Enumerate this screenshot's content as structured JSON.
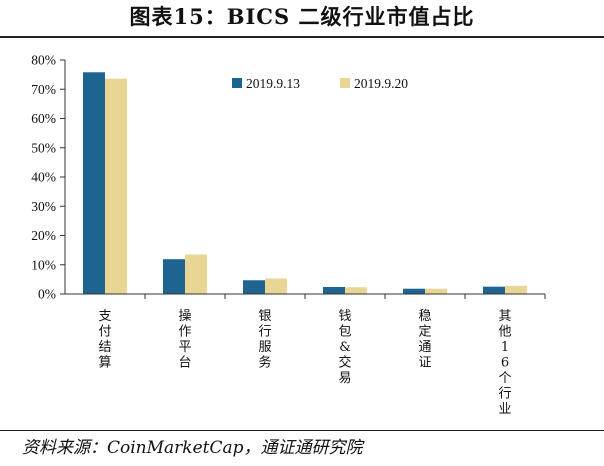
{
  "figure": {
    "title": "图表15：BICS 二级行业市值占比",
    "source": "资料来源：CoinMarketCap，通证通研究院"
  },
  "chart_data": {
    "type": "bar",
    "categories": [
      "支付结算",
      "操作平台",
      "银行服务",
      "钱包&交易",
      "稳定通证",
      "其他16个行业"
    ],
    "series": [
      {
        "name": "2019.9.13",
        "values": [
          75.8,
          11.9,
          4.7,
          2.4,
          1.8,
          2.5
        ],
        "color": "#1f6391"
      },
      {
        "name": "2019.9.20",
        "values": [
          73.6,
          13.5,
          5.3,
          2.3,
          1.8,
          2.8
        ],
        "color": "#e9d594"
      }
    ],
    "ylim": [
      0,
      80
    ],
    "yticks": [
      "0%",
      "10%",
      "20%",
      "30%",
      "40%",
      "50%",
      "60%",
      "70%",
      "80%"
    ],
    "ylabel": "",
    "xlabel": "",
    "grid": false,
    "legend_position": "top-center"
  }
}
